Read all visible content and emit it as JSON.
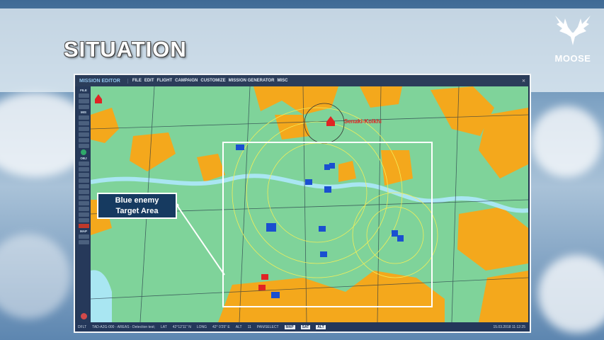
{
  "slide": {
    "title": "SITUATION",
    "logo_text": "MOOSE"
  },
  "window": {
    "app_title": "MISSION EDITOR",
    "menu": [
      "FILE",
      "EDIT",
      "FLIGHT",
      "CAMPAIGN",
      "CUSTOMIZE",
      "MISSION GENERATOR",
      "MISC"
    ],
    "close_icon": "close-icon",
    "sidebar": {
      "sections": [
        "FILE",
        "MIS",
        "OBJ",
        "MAP"
      ]
    },
    "map": {
      "airbase_label": "Senaki-Kolkhi",
      "colors": {
        "land": "#7fd39a",
        "urban": "#f4a81c",
        "water": "#a9e6f2",
        "blue_units": "#1a4fd0",
        "red_units": "#e02424",
        "zones": "#f2ee5a"
      }
    },
    "status": {
      "mode": "DFLT",
      "mission": "TAD-A2G-000 - AREAS - Detection test;",
      "lat_label": "LAT",
      "lat": "42°12'11\" N",
      "long_label": "LONG",
      "long": "42° 0'25\" E",
      "alt_label": "ALT",
      "alt": "11",
      "pan_select": "PAN/SELECT",
      "map_btn": "MAP",
      "sat_btn": "SAT",
      "alt_btn": "ALT",
      "datetime": "15.03.2018 11:12:25"
    }
  },
  "callout": {
    "line1": "Blue enemy",
    "line2": "Target Area"
  }
}
